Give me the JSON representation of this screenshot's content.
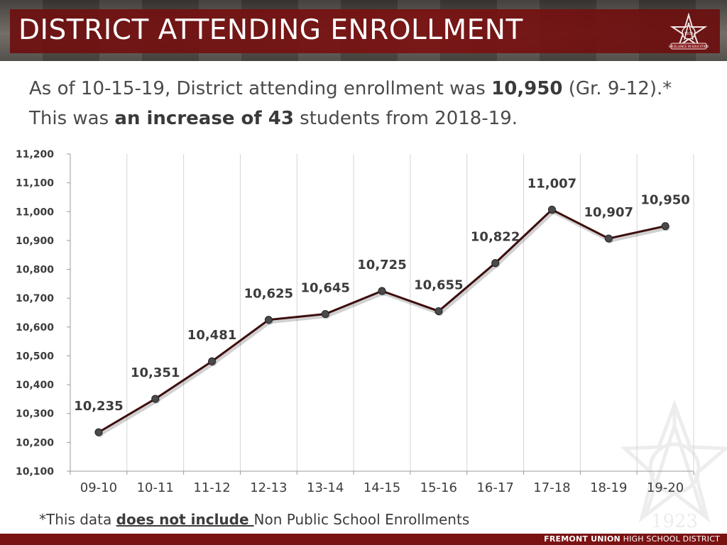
{
  "header": {
    "title": "DISTRICT ATTENDING ENROLLMENT",
    "logo_year": "1923",
    "logo_motto": "EXCELLENCE IN EDUCATION"
  },
  "summary": {
    "line1_pre": "As of 10-15-19, District attending enrollment was ",
    "line1_bold": "10,950",
    "line1_post": " (Gr. 9-12).*",
    "line2_pre": "This was ",
    "line2_bold": "an increase of 43",
    "line2_post": " students from 2018-19."
  },
  "chart_data": {
    "type": "line",
    "title": "",
    "xlabel": "",
    "ylabel": "",
    "categories": [
      "09-10",
      "10-11",
      "11-12",
      "12-13",
      "13-14",
      "14-15",
      "15-16",
      "16-17",
      "17-18",
      "18-19",
      "19-20"
    ],
    "values": [
      10235,
      10351,
      10481,
      10625,
      10645,
      10725,
      10655,
      10822,
      11007,
      10907,
      10950
    ],
    "data_labels": [
      "10,235",
      "10,351",
      "10,481",
      "10,625",
      "10,645",
      "10,725",
      "10,655",
      "10,822",
      "11,007",
      "10,907",
      "10,950"
    ],
    "ylim": [
      10100,
      11200
    ],
    "yticks": [
      10100,
      10200,
      10300,
      10400,
      10500,
      10600,
      10700,
      10800,
      10900,
      11000,
      11100,
      11200
    ],
    "ytick_labels": [
      "10,100",
      "10,200",
      "10,300",
      "10,400",
      "10,500",
      "10,600",
      "10,700",
      "10,800",
      "10,900",
      "11,000",
      "11,100",
      "11,200"
    ],
    "grid": "vertical",
    "line_color": "#3d0d0d",
    "marker_color": "#4a4a4a"
  },
  "footnote": {
    "pre": "*This data ",
    "emph": "does not include ",
    "post": "Non Public School Enrollments"
  },
  "footer": {
    "org_bold": "FREMONT UNION",
    "org_rest": " HIGH SCHOOL DISTRICT"
  },
  "colors": {
    "brand": "#7a1212",
    "text": "#4a4a4a"
  }
}
